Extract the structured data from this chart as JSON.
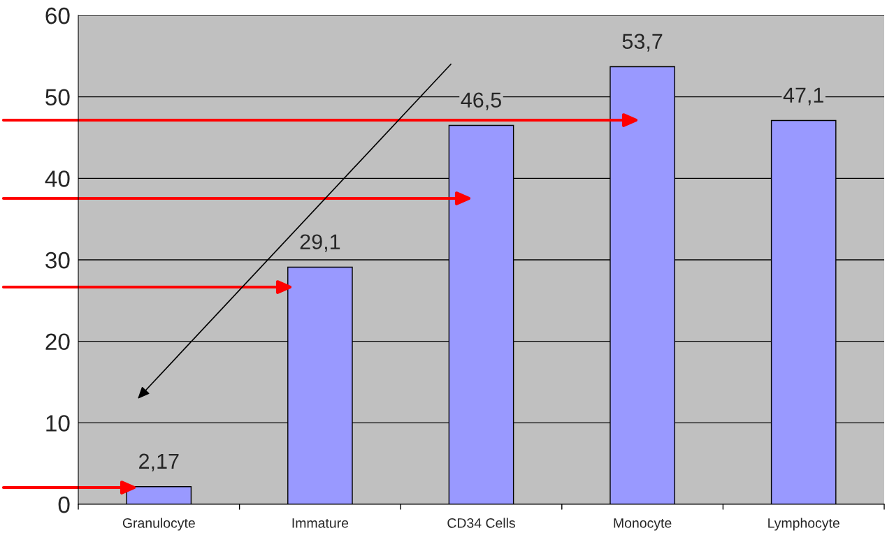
{
  "chart_data": {
    "type": "bar",
    "categories": [
      "Granulocyte",
      "Immature",
      "CD34 Cells",
      "Monocyte",
      "Lymphocyte"
    ],
    "values": [
      2.17,
      29.1,
      46.5,
      53.7,
      47.1
    ],
    "value_labels": [
      "2,17",
      "29,1",
      "46,5",
      "53,7",
      "47,1"
    ],
    "color": "#9999ff",
    "ylim": [
      0,
      60
    ],
    "yticks": [
      0,
      10,
      20,
      30,
      40,
      50,
      60
    ],
    "grid": "y",
    "legend": false
  }
}
